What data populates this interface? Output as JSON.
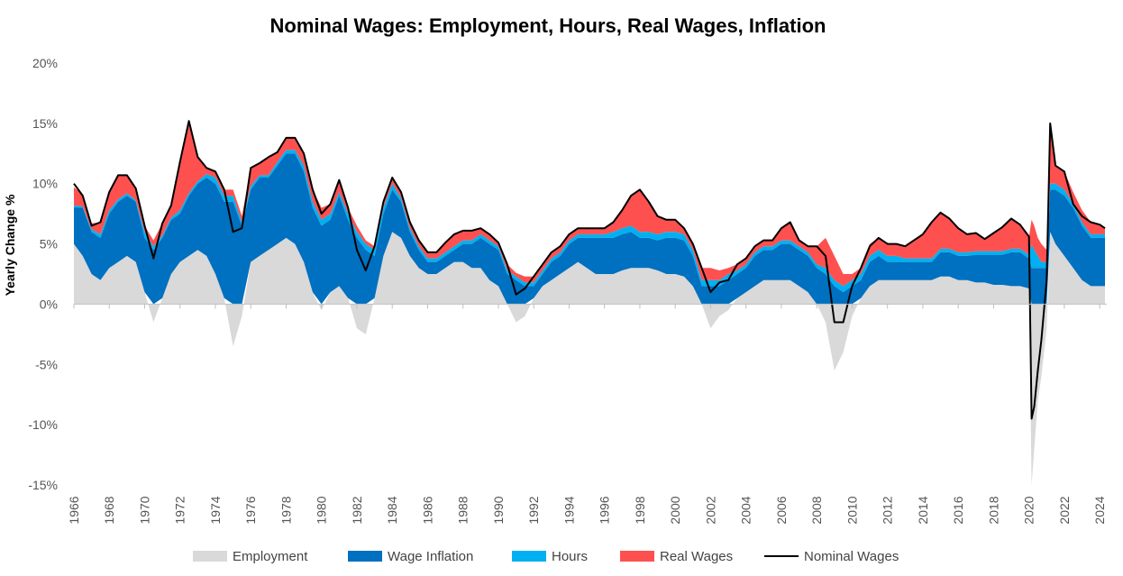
{
  "chart_data": {
    "type": "area",
    "title": "Nominal Wages: Employment, Hours, Real Wages, Inflation",
    "ylabel": "Yearly Change %",
    "xlabel": "",
    "ylim": [
      -15,
      20
    ],
    "xlim": [
      1966,
      2024.4
    ],
    "grid": false,
    "legend_position": "bottom",
    "y_ticks": [
      20,
      15,
      10,
      5,
      0,
      -5,
      -10,
      -15
    ],
    "y_tick_labels": [
      "20%",
      "15%",
      "10%",
      "5%",
      "0%",
      "-5%",
      "-10%",
      "-15%"
    ],
    "x_ticks": [
      1966,
      1968,
      1970,
      1972,
      1974,
      1976,
      1978,
      1980,
      1982,
      1984,
      1986,
      1988,
      1990,
      1992,
      1994,
      1996,
      1998,
      2000,
      2002,
      2004,
      2006,
      2008,
      2010,
      2012,
      2014,
      2016,
      2018,
      2020,
      2022,
      2024
    ],
    "x_tick_labels": [
      "1966",
      "1968",
      "1970",
      "1972",
      "1974",
      "1976",
      "1978",
      "1980",
      "1982",
      "1984",
      "1986",
      "1988",
      "1990",
      "1992",
      "1994",
      "1996",
      "1998",
      "2000",
      "2002",
      "2004",
      "2006",
      "2008",
      "2010",
      "2012",
      "2014",
      "2016",
      "2018",
      "2020",
      "2022",
      "2024"
    ],
    "x": [
      1966,
      1966.5,
      1967,
      1967.5,
      1968,
      1968.5,
      1969,
      1969.5,
      1970,
      1970.5,
      1971,
      1971.5,
      1972,
      1972.5,
      1973,
      1973.5,
      1974,
      1974.5,
      1975,
      1975.5,
      1976,
      1976.5,
      1977,
      1977.5,
      1978,
      1978.5,
      1979,
      1979.5,
      1980,
      1980.5,
      1981,
      1981.5,
      1982,
      1982.5,
      1983,
      1983.5,
      1984,
      1984.5,
      1985,
      1985.5,
      1986,
      1986.5,
      1987,
      1987.5,
      1988,
      1988.5,
      1989,
      1989.5,
      1990,
      1990.5,
      1991,
      1991.5,
      1992,
      1992.5,
      1993,
      1993.5,
      1994,
      1994.5,
      1995,
      1995.5,
      1996,
      1996.5,
      1997,
      1997.5,
      1998,
      1998.5,
      1999,
      1999.5,
      2000,
      2000.5,
      2001,
      2001.5,
      2002,
      2002.5,
      2003,
      2003.5,
      2004,
      2004.5,
      2005,
      2005.5,
      2006,
      2006.5,
      2007,
      2007.5,
      2008,
      2008.5,
      2009,
      2009.5,
      2010,
      2010.5,
      2011,
      2011.5,
      2012,
      2012.5,
      2013,
      2013.5,
      2014,
      2014.5,
      2015,
      2015.5,
      2016,
      2016.5,
      2017,
      2017.5,
      2018,
      2018.5,
      2019,
      2019.5,
      2020,
      2020.15,
      2020.3,
      2020.5,
      2020.7,
      2021,
      2021.2,
      2021.5,
      2022,
      2022.5,
      2023,
      2023.5,
      2024,
      2024.3
    ],
    "series": [
      {
        "name": "Employment",
        "color": "#d9d9d9",
        "values": [
          5.0,
          4.0,
          2.5,
          2.0,
          3.0,
          3.5,
          4.0,
          3.5,
          1.0,
          -1.5,
          0.5,
          2.5,
          3.5,
          4.0,
          4.5,
          4.0,
          2.5,
          0.5,
          -3.5,
          -1.0,
          3.5,
          4.0,
          4.5,
          5.0,
          5.5,
          5.0,
          3.5,
          1.0,
          -0.5,
          1.0,
          1.5,
          0.5,
          -2.0,
          -2.5,
          0.5,
          4.0,
          6.0,
          5.5,
          4.0,
          3.0,
          2.5,
          2.5,
          3.0,
          3.5,
          3.5,
          3.0,
          3.0,
          2.0,
          1.5,
          0.0,
          -1.5,
          -1.0,
          0.5,
          1.5,
          2.0,
          2.5,
          3.0,
          3.5,
          3.0,
          2.5,
          2.5,
          2.5,
          2.8,
          3.0,
          3.0,
          3.0,
          2.8,
          2.5,
          2.5,
          2.3,
          1.5,
          0.0,
          -2.0,
          -1.0,
          -0.5,
          0.5,
          1.0,
          1.5,
          2.0,
          2.0,
          2.0,
          2.0,
          1.5,
          1.0,
          0.0,
          -1.5,
          -5.5,
          -4.0,
          -1.0,
          0.5,
          1.5,
          2.0,
          2.0,
          2.0,
          2.0,
          2.0,
          2.0,
          2.0,
          2.3,
          2.3,
          2.0,
          2.0,
          1.8,
          1.8,
          1.6,
          1.6,
          1.5,
          1.5,
          1.3,
          -15.0,
          -12.0,
          -8.0,
          -6.0,
          -2.0,
          6.0,
          5.0,
          4.0,
          3.0,
          2.0,
          1.5,
          1.5,
          1.5
        ]
      },
      {
        "name": "Wage Inflation",
        "color": "#0070c0",
        "values": [
          3.0,
          4.0,
          3.5,
          3.5,
          4.5,
          5.0,
          5.0,
          5.0,
          4.5,
          4.5,
          5.0,
          4.5,
          4.0,
          5.0,
          5.5,
          6.5,
          7.5,
          8.0,
          8.5,
          6.5,
          6.0,
          6.5,
          6.0,
          6.5,
          7.0,
          7.5,
          7.5,
          7.0,
          6.5,
          6.0,
          7.5,
          6.5,
          5.5,
          4.5,
          3.5,
          3.5,
          3.5,
          3.0,
          2.0,
          1.5,
          1.0,
          1.0,
          1.0,
          1.0,
          1.5,
          2.0,
          2.5,
          3.0,
          3.0,
          2.5,
          2.0,
          1.5,
          1.0,
          1.0,
          1.5,
          1.5,
          2.0,
          2.0,
          2.5,
          3.0,
          3.0,
          3.0,
          3.0,
          3.0,
          2.5,
          2.5,
          2.5,
          3.0,
          3.0,
          3.0,
          2.5,
          1.5,
          1.5,
          1.5,
          2.0,
          2.0,
          2.0,
          2.5,
          2.5,
          2.5,
          3.0,
          3.0,
          3.0,
          3.0,
          3.0,
          2.5,
          1.5,
          1.0,
          1.5,
          1.5,
          2.0,
          2.0,
          1.5,
          1.5,
          1.5,
          1.5,
          1.5,
          1.5,
          2.0,
          2.0,
          2.0,
          2.0,
          2.3,
          2.3,
          2.5,
          2.5,
          2.8,
          2.8,
          2.5,
          3.0,
          3.0,
          3.0,
          3.0,
          3.0,
          3.5,
          4.5,
          5.0,
          5.0,
          4.5,
          4.0,
          4.0,
          4.0
        ]
      },
      {
        "name": "Hours",
        "color": "#00b0f0",
        "values": [
          0.2,
          0.1,
          0.2,
          0.3,
          0.3,
          0.2,
          0.2,
          0.1,
          0.5,
          0.3,
          0.2,
          0.2,
          0.3,
          0.2,
          0.2,
          0.3,
          0.5,
          0.5,
          0.5,
          0.3,
          0.3,
          0.2,
          0.2,
          0.3,
          0.3,
          0.3,
          0.5,
          0.5,
          0.5,
          0.5,
          0.3,
          0.5,
          0.5,
          0.5,
          0.5,
          0.5,
          0.5,
          0.3,
          0.3,
          0.3,
          0.3,
          0.3,
          0.3,
          0.3,
          0.3,
          0.3,
          0.3,
          0.3,
          0.3,
          0.3,
          0.3,
          0.3,
          0.3,
          0.3,
          0.3,
          0.3,
          0.3,
          0.3,
          0.3,
          0.3,
          0.3,
          0.5,
          0.5,
          0.5,
          0.5,
          0.5,
          0.5,
          0.5,
          0.5,
          0.5,
          0.5,
          0.5,
          0.5,
          0.5,
          0.5,
          0.3,
          0.3,
          0.3,
          0.3,
          0.3,
          0.3,
          0.3,
          0.3,
          0.3,
          0.3,
          0.5,
          0.5,
          0.5,
          0.5,
          0.5,
          0.5,
          0.5,
          0.5,
          0.5,
          0.3,
          0.3,
          0.3,
          0.3,
          0.3,
          0.3,
          0.3,
          0.3,
          0.3,
          0.3,
          0.3,
          0.3,
          0.3,
          0.3,
          0.3,
          2.0,
          1.5,
          1.0,
          0.5,
          0.5,
          0.5,
          0.5,
          0.5,
          0.3,
          0.3,
          0.3,
          0.3,
          0.3
        ]
      },
      {
        "name": "Real Wages",
        "color": "#ff5050",
        "values": [
          1.5,
          1.0,
          0.5,
          1.0,
          1.5,
          2.0,
          1.5,
          1.0,
          0.5,
          0.5,
          1.0,
          1.0,
          4.0,
          6.0,
          2.0,
          0.5,
          0.5,
          0.5,
          0.5,
          0.5,
          1.5,
          1.0,
          1.5,
          0.8,
          1.0,
          1.0,
          1.0,
          1.0,
          1.0,
          0.8,
          1.0,
          0.5,
          0.5,
          0.3,
          0.3,
          0.5,
          0.5,
          0.5,
          0.5,
          0.5,
          0.5,
          0.5,
          0.8,
          1.0,
          0.8,
          0.8,
          0.5,
          0.5,
          0.3,
          0.5,
          0.3,
          0.5,
          0.5,
          0.5,
          0.5,
          0.5,
          0.5,
          0.5,
          0.5,
          0.5,
          0.5,
          0.8,
          1.5,
          2.5,
          3.5,
          2.5,
          1.5,
          1.0,
          1.0,
          0.5,
          0.5,
          1.0,
          1.0,
          0.8,
          0.5,
          0.5,
          0.5,
          0.5,
          0.5,
          0.5,
          1.0,
          1.5,
          0.5,
          0.5,
          1.5,
          2.5,
          2.0,
          1.0,
          0.5,
          0.5,
          1.0,
          1.0,
          1.0,
          1.0,
          1.0,
          1.5,
          2.0,
          3.0,
          3.0,
          2.5,
          2.0,
          1.5,
          1.5,
          1.0,
          1.5,
          2.0,
          2.5,
          2.0,
          1.5,
          2.0,
          2.0,
          1.5,
          1.5,
          1.0,
          5.0,
          1.5,
          1.5,
          1.0,
          1.0,
          1.0,
          0.8,
          0.5
        ]
      }
    ],
    "nominal_wages": {
      "name": "Nominal Wages",
      "color": "#000000",
      "values": [
        10.0,
        9.0,
        6.5,
        6.8,
        9.3,
        10.7,
        10.7,
        9.6,
        6.5,
        3.8,
        6.7,
        8.2,
        11.8,
        15.2,
        12.2,
        11.3,
        11.0,
        9.5,
        6.0,
        6.3,
        11.3,
        11.7,
        12.2,
        12.6,
        13.8,
        13.8,
        12.5,
        9.5,
        7.5,
        8.3,
        10.3,
        8.0,
        4.5,
        2.8,
        4.8,
        8.5,
        10.5,
        9.3,
        6.8,
        5.3,
        4.3,
        4.3,
        5.1,
        5.8,
        6.1,
        6.1,
        6.3,
        5.8,
        5.1,
        3.3,
        0.8,
        1.3,
        2.3,
        3.3,
        4.3,
        4.8,
        5.8,
        6.3,
        6.3,
        6.3,
        6.3,
        6.8,
        7.8,
        9.0,
        9.5,
        8.5,
        7.3,
        7.0,
        7.0,
        6.3,
        5.0,
        3.0,
        1.0,
        1.8,
        2.0,
        3.3,
        3.8,
        4.8,
        5.3,
        5.3,
        6.3,
        6.8,
        5.3,
        4.8,
        4.8,
        4.0,
        -1.5,
        -1.5,
        1.5,
        3.0,
        4.8,
        5.5,
        5.0,
        5.0,
        4.8,
        5.3,
        5.8,
        6.8,
        7.6,
        7.1,
        6.3,
        5.8,
        5.9,
        5.4,
        5.9,
        6.4,
        7.1,
        6.6,
        5.6,
        -9.5,
        -8.5,
        -5.5,
        -3.0,
        2.0,
        15.0,
        11.5,
        11.0,
        8.3,
        7.3,
        6.8,
        6.6,
        6.3
      ]
    }
  },
  "legend": [
    {
      "label": "Employment",
      "color": "#d9d9d9",
      "kind": "swatch"
    },
    {
      "label": "Wage Inflation",
      "color": "#0070c0",
      "kind": "swatch"
    },
    {
      "label": "Hours",
      "color": "#00b0f0",
      "kind": "swatch"
    },
    {
      "label": "Real Wages",
      "color": "#ff5050",
      "kind": "swatch"
    },
    {
      "label": "Nominal Wages",
      "color": "#000000",
      "kind": "line"
    }
  ]
}
